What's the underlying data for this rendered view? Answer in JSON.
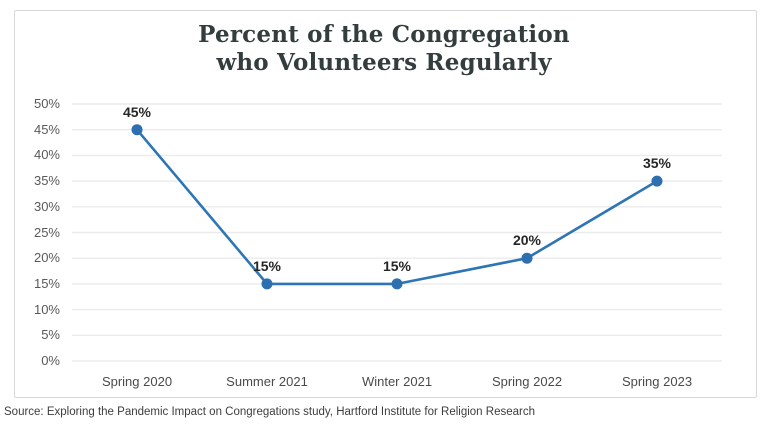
{
  "title": {
    "line1": "Percent of the Congregation",
    "line2": "who Volunteers Regularly"
  },
  "source": "Source: Exploring the Pandemic Impact on Congregations study, Hartford Institute for Religion Research",
  "colors": {
    "line": "#2e75b6",
    "marker": "#2e6fb0",
    "grid": "#ebebeb",
    "border": "#d8d8d8",
    "title_text": "#333d3d",
    "axis_text": "#595959",
    "xaxis_text": "#4a4a4a",
    "data_label_text": "#262626",
    "background": "#ffffff"
  },
  "chart_data": {
    "type": "line",
    "title": "Percent of the Congregation who Volunteers Regularly",
    "categories": [
      "Spring 2020",
      "Summer 2021",
      "Winter 2021",
      "Spring 2022",
      "Spring 2023"
    ],
    "values": [
      45,
      15,
      15,
      20,
      35
    ],
    "data_labels": [
      "45%",
      "15%",
      "15%",
      "20%",
      "35%"
    ],
    "xlabel": "",
    "ylabel": "",
    "ylim": [
      0,
      50
    ],
    "ytick_step": 5,
    "ytick_labels": [
      "0%",
      "5%",
      "10%",
      "15%",
      "20%",
      "25%",
      "30%",
      "35%",
      "40%",
      "45%",
      "50%"
    ],
    "grid": "horizontal",
    "legend": "none",
    "marker": "circle",
    "data_label_position": "above"
  }
}
